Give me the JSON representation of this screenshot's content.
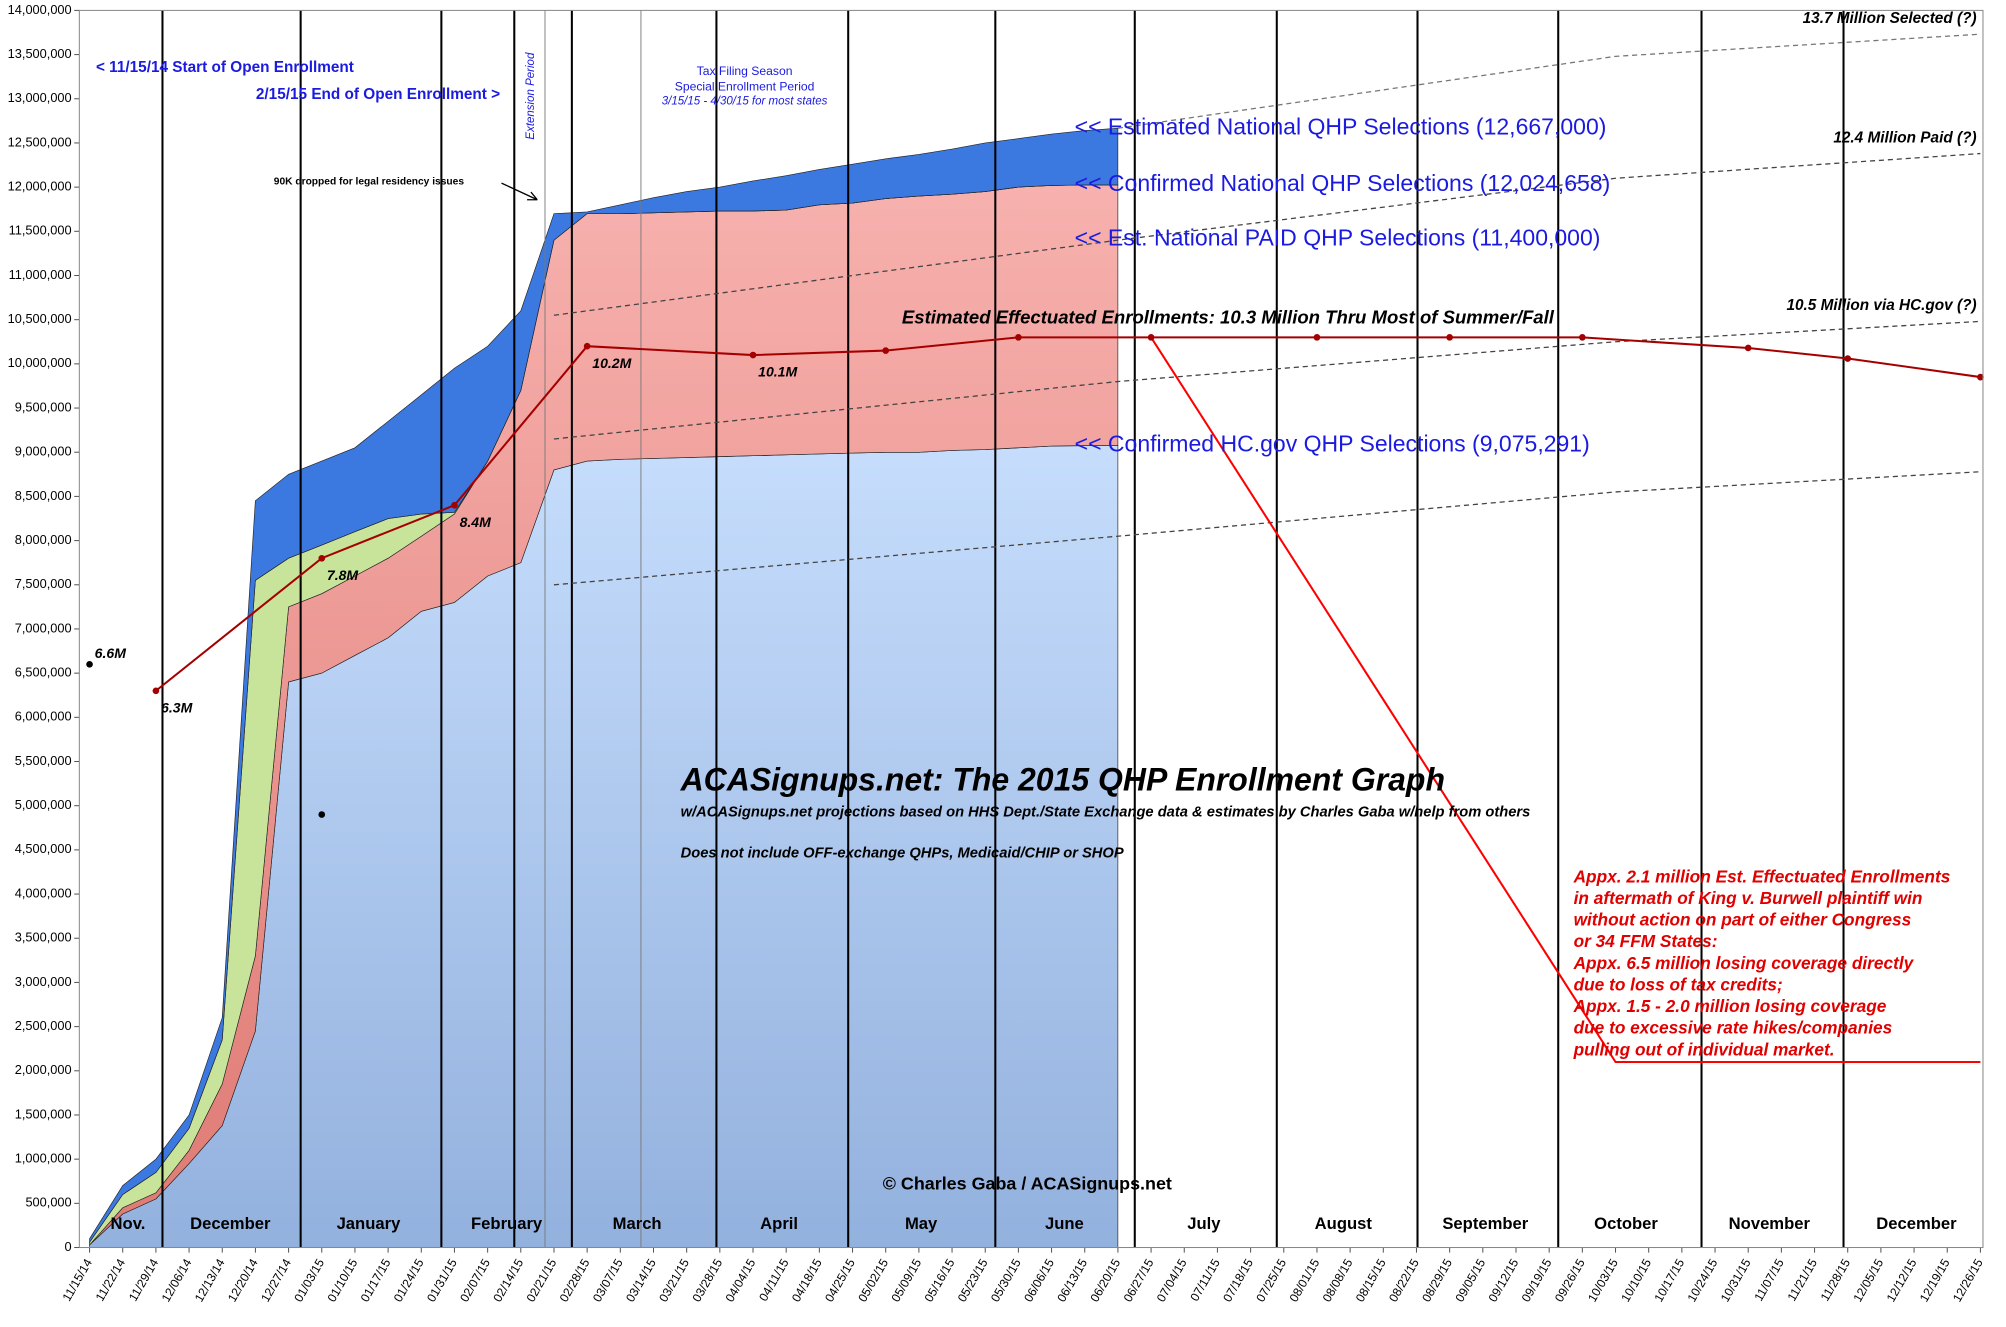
{
  "chart_data": {
    "type": "area",
    "title": "ACASignups.net: The 2015 QHP Enrollment Graph",
    "subtitle": "w/ACASignups.net projections based on HHS Dept./State Exchange data & estimates by Charles Gaba w/help from others",
    "note": "Does not include OFF-exchange QHPs, Medicaid/CHIP or SHOP",
    "credit": "© Charles Gaba / ACASignups.net",
    "stacked": true,
    "categories": [
      "11/15/14",
      "11/22/14",
      "11/29/14",
      "12/06/14",
      "12/13/14",
      "12/20/14",
      "12/27/14",
      "01/03/15",
      "01/10/15",
      "01/17/15",
      "01/24/15",
      "01/31/15",
      "02/07/15",
      "02/14/15",
      "02/21/15",
      "02/28/15",
      "03/07/15",
      "03/14/15",
      "03/21/15",
      "03/28/15",
      "04/04/15",
      "04/11/15",
      "04/18/15",
      "04/25/15",
      "05/02/15",
      "05/09/15",
      "05/16/15",
      "05/23/15",
      "05/30/15",
      "06/06/15",
      "06/13/15",
      "06/20/15",
      "06/27/15",
      "07/04/15",
      "07/11/15",
      "07/18/15",
      "07/25/15",
      "08/01/15",
      "08/08/15",
      "08/15/15",
      "08/22/15",
      "08/29/15",
      "09/05/15",
      "09/12/15",
      "09/19/15",
      "09/26/15",
      "10/03/15",
      "10/10/15",
      "10/17/15",
      "10/24/15",
      "10/31/15",
      "11/07/15",
      "11/21/15",
      "11/28/15",
      "12/05/15",
      "12/12/15",
      "12/19/15",
      "12/26/15"
    ],
    "month_labels": [
      "Nov.",
      "December",
      "January",
      "February",
      "March",
      "April",
      "May",
      "June",
      "July",
      "August",
      "September",
      "October",
      "November",
      "December"
    ],
    "ylim": [
      0,
      14000000
    ],
    "yticks": [
      0,
      {
        "value": 500000,
        "label": "500,000"
      },
      {
        "value": 1000000,
        "label": "1,000,000"
      },
      {
        "value": 1500000,
        "label": "1,500,000"
      },
      {
        "value": 2000000,
        "label": "2,000,000"
      },
      {
        "value": 2500000,
        "label": "2,500,000"
      },
      {
        "value": 3000000,
        "label": "3,000,000"
      },
      {
        "value": 3500000,
        "label": "3,500,000"
      },
      {
        "value": 4000000,
        "label": "4,000,000"
      },
      {
        "value": 4500000,
        "label": "4,500,000"
      },
      {
        "value": 5000000,
        "label": "5,000,000"
      },
      {
        "value": 5500000,
        "label": "5,500,000"
      },
      {
        "value": 6000000,
        "label": "6,000,000"
      },
      {
        "value": 6500000,
        "label": "6,500,000"
      },
      {
        "value": 7000000,
        "label": "7,000,000"
      },
      {
        "value": 7500000,
        "label": "7,500,000"
      },
      {
        "value": 8000000,
        "label": "8,000,000"
      },
      {
        "value": 8500000,
        "label": "8,500,000"
      },
      {
        "value": 9000000,
        "label": "9,000,000"
      },
      {
        "value": 9500000,
        "label": "9,500,000"
      },
      {
        "value": 10000000,
        "label": "10,000,000"
      },
      {
        "value": 10500000,
        "label": "10,500,000"
      },
      {
        "value": 11000000,
        "label": "11,000,000"
      },
      {
        "value": 11500000,
        "label": "11,500,000"
      },
      {
        "value": 12000000,
        "label": "12,000,000"
      },
      {
        "value": 12500000,
        "label": "12,500,000"
      },
      {
        "value": 13000000,
        "label": "13,000,000"
      },
      {
        "value": 13500000,
        "label": "13,500,000"
      },
      {
        "value": 14000000,
        "label": "14,000,000"
      }
    ],
    "series": [
      {
        "name": "<< Confirmed HC.gov QHP Selections (9,075,291)",
        "color": "#a9c4ee",
        "values": [
          30000,
          380000,
          550000,
          950000,
          1380000,
          2450000,
          6400000,
          6500000,
          6700000,
          6900000,
          7200000,
          7300000,
          7600000,
          7750000,
          8800000,
          8900000,
          8920000,
          8930000,
          8940000,
          8950000,
          8960000,
          8970000,
          8980000,
          8990000,
          9000000,
          9000000,
          9020000,
          9030000,
          9050000,
          9070000,
          9075291,
          9075291,
          null,
          null,
          null,
          null,
          null,
          null,
          null,
          null,
          null,
          null,
          null,
          null,
          null,
          null,
          null,
          null,
          null,
          null,
          null,
          null,
          null,
          null,
          null,
          null,
          null,
          null
        ]
      },
      {
        "name": "<< Confirmed National QHP Selections (12,024,658)",
        "color": "#ef9a96",
        "values": [
          0,
          70000,
          70000,
          150000,
          470000,
          850000,
          850000,
          900000,
          900000,
          900000,
          850000,
          1000000,
          1300000,
          1950000,
          2600000,
          2800000,
          2780000,
          2780000,
          2780000,
          2780000,
          2770000,
          2770000,
          2820000,
          2830000,
          2870000,
          2900000,
          2900000,
          2920000,
          2950000,
          2950000,
          2949367,
          2949367,
          null,
          null,
          null,
          null,
          null,
          null,
          null,
          null,
          null,
          null,
          null,
          null,
          null,
          null,
          null,
          null,
          null,
          null,
          null,
          null,
          null,
          null,
          null,
          null,
          null,
          null
        ]
      },
      {
        "color": "#c8e39a",
        "values": [
          30000,
          150000,
          230000,
          250000,
          500000,
          4250000,
          550000,
          550000,
          500000,
          450000,
          250000,
          20000,
          0,
          0,
          0,
          0,
          0,
          0,
          0,
          0,
          0,
          0,
          0,
          0,
          0,
          0,
          0,
          0,
          0,
          0,
          0,
          0,
          null,
          null,
          null,
          null,
          null,
          null,
          null,
          null,
          null,
          null,
          null,
          null,
          null,
          null,
          null,
          null,
          null,
          null,
          null,
          null,
          null,
          null,
          null,
          null,
          null,
          null
        ]
      },
      {
        "name": "<< Estimated National QHP Selections (12,667,000)",
        "color": "#3b78e0",
        "values": [
          40000,
          100000,
          150000,
          150000,
          250000,
          900000,
          950000,
          950000,
          950000,
          1100000,
          1350000,
          1630000,
          1300000,
          900000,
          300000,
          20000,
          100000,
          170000,
          230000,
          270000,
          340000,
          390000,
          400000,
          440000,
          450000,
          470000,
          510000,
          550000,
          550000,
          580000,
          615342,
          642342,
          null,
          null,
          null,
          null,
          null,
          null,
          null,
          null,
          null,
          null,
          null,
          null,
          null,
          null,
          null,
          null,
          null,
          null,
          null,
          null,
          null,
          null,
          null,
          null,
          null,
          null
        ]
      }
    ],
    "overlays": [
      {
        "type": "line",
        "name": "13.7 Million Selected (?)",
        "color": "#777777",
        "dashed": true,
        "x": [
          "06/20/15",
          "10/03/15",
          "12/26/15"
        ],
        "values": [
          12667000,
          13480000,
          13730000
        ]
      },
      {
        "type": "line",
        "name": "12.4 Million Paid (?)",
        "color": "#444444",
        "dashed": true,
        "x": [
          "02/21/15",
          "06/20/15",
          "10/03/15",
          "12/26/15"
        ],
        "values": [
          10550000,
          11400000,
          12100000,
          12380000
        ]
      },
      {
        "type": "line",
        "name": "10.5 Million via HC.gov (?)",
        "color": "#444444",
        "dashed": true,
        "x": [
          "02/21/15",
          "06/20/15",
          "10/03/15",
          "12/26/15"
        ],
        "values": [
          9150000,
          9800000,
          10250000,
          10480000
        ]
      },
      {
        "type": "line",
        "color": "#444444",
        "dashed": true,
        "x": [
          "02/21/15",
          "06/20/15",
          "10/03/15",
          "12/26/15"
        ],
        "values": [
          7500000,
          8050000,
          8550000,
          8780000
        ]
      },
      {
        "type": "line",
        "color": "#ff0000",
        "x": [
          "06/27/15",
          "10/03/15",
          "12/26/15"
        ],
        "values": [
          10300000,
          2100000,
          2100000
        ]
      },
      {
        "type": "line",
        "color": "#a50000",
        "markers": true,
        "x": [
          "11/29/14",
          "01/03/15",
          "01/31/15",
          "02/28/15",
          "04/04/15",
          "05/02/15",
          "05/30/15",
          "06/27/15",
          "08/01/15",
          "08/29/15",
          "09/26/15",
          "10/31/15",
          "11/28/15",
          "12/26/15"
        ],
        "values": [
          6300000,
          7800000,
          8400000,
          10200000,
          10100000,
          10150000,
          10300000,
          10300000,
          10300000,
          10300000,
          10300000,
          10180000,
          10060000,
          9850000
        ],
        "value_labels": [
          "6.3M",
          "7.8M",
          "8.4M",
          "10.2M",
          "10.1M",
          null,
          null,
          null,
          null,
          null,
          null,
          null,
          null,
          null
        ]
      },
      {
        "type": "scatter",
        "color": "#000000",
        "x": [
          "11/15/14",
          "01/03/15"
        ],
        "values": [
          6600000,
          4900000
        ],
        "value_labels": [
          "6.6M",
          null
        ]
      }
    ],
    "annotations": [
      "< 11/15/14 Start of Open Enrollment",
      "2/15/15 End of Open Enrollment >",
      "Extension Period",
      "Tax Filing Season",
      "Special Enrollment Period",
      "3/15/15 - 4/30/15 for most states",
      "90K dropped for legal residency issues",
      "<< Est. National PAID QHP Selections (11,400,000)",
      "Estimated Effectuated Enrollments: 10.3 Million Thru Most of Summer/Fall",
      "Appx. 2.1 million Est. Effectuated Enrollments",
      "in aftermath of King v. Burwell plaintiff win",
      "without action on part of either Congress",
      "or 34 FFM States:",
      "Appx. 6.5 million losing coverage directly",
      "due to loss of tax credits;",
      "Appx. 1.5 - 2.0 million losing coverage",
      "due to excessive rate hikes/companies",
      "pulling out of individual market."
    ]
  }
}
